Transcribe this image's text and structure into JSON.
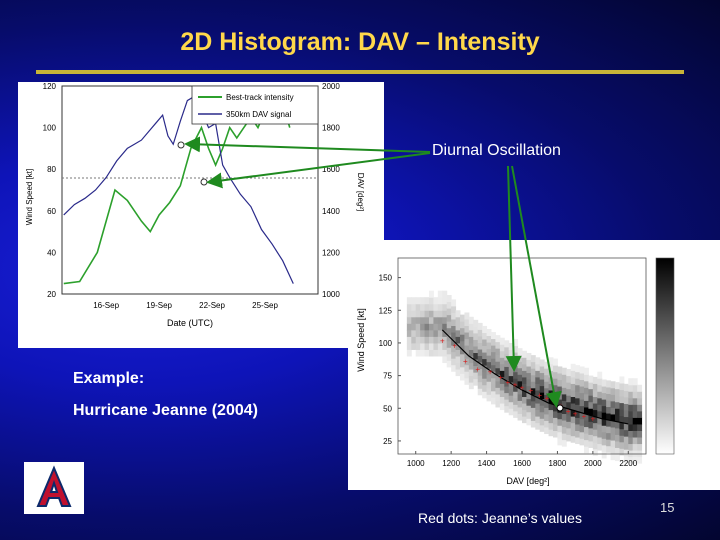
{
  "slide": {
    "title": "2D Histogram: DAV – Intensity",
    "annotation": "Diurnal Oscillation",
    "example_label": "Example:",
    "example_name": "Hurricane Jeanne (2004)",
    "caption": "Red dots: Jeanne’s values",
    "page_number": "15"
  },
  "colors": {
    "title": "#ffd84a",
    "arrow": "#1f8a1f",
    "intensity_line": "#2ca02c",
    "dav_line": "#2a2a8a",
    "red_dots": "#d81e1e"
  },
  "chart_data": [
    {
      "type": "line",
      "legend": [
        "Best-track intensity",
        "350km DAV signal"
      ],
      "xlabel": "Date (UTC)",
      "ylabel_left": "Wind Speed [kt]",
      "ylabel_right": "DAV [deg²]",
      "x_ticks": [
        "16-Sep",
        "19-Sep",
        "22-Sep",
        "25-Sep"
      ],
      "y_left_ticks": [
        "120",
        "100",
        "80",
        "60",
        "40",
        "20"
      ],
      "y_right_ticks": [
        "2000",
        "1800",
        "1600",
        "1400",
        "1200",
        "1000"
      ],
      "y_left_range": [
        20,
        120
      ],
      "y_right_range": [
        1000,
        2000
      ],
      "x_range_days": [
        13.5,
        28
      ],
      "series": [
        {
          "name": "Best-track intensity",
          "x": [
            13.6,
            14.5,
            15.5,
            16.5,
            17.2,
            18,
            18.5,
            19,
            19.6,
            20.2,
            20.8,
            21.4,
            21.8,
            22.2,
            22.6,
            23,
            23.4,
            23.8,
            24.2,
            24.6,
            25,
            25.6,
            26,
            26.4
          ],
          "y": [
            25,
            26,
            40,
            70,
            65,
            55,
            50,
            58,
            64,
            72,
            90,
            100,
            90,
            82,
            90,
            100,
            95,
            100,
            105,
            100,
            108,
            110,
            112,
            100
          ]
        },
        {
          "name": "350km DAV signal",
          "x": [
            13.6,
            14.2,
            14.8,
            15.4,
            16,
            16.6,
            17.2,
            17.6,
            18,
            18.4,
            18.8,
            19.2,
            19.5,
            19.8,
            20.2,
            20.6,
            21,
            21.4,
            21.8,
            22.2,
            22.6,
            23,
            23.6,
            24.2,
            24.8,
            25.4,
            26,
            26.6
          ],
          "y": [
            1380,
            1430,
            1460,
            1500,
            1560,
            1640,
            1700,
            1720,
            1740,
            1780,
            1820,
            1860,
            1760,
            1720,
            1830,
            1930,
            1950,
            1880,
            1800,
            1820,
            1620,
            1560,
            1480,
            1420,
            1310,
            1240,
            1160,
            1050
          ]
        }
      ]
    },
    {
      "type": "heatmap",
      "xlabel": "DAV [deg²]",
      "ylabel": "Wind Speed [kt]",
      "x_ticks": [
        "1000",
        "1200",
        "1400",
        "1600",
        "1800",
        "2000",
        "2200"
      ],
      "y_ticks": [
        "150",
        "125",
        "100",
        "75",
        "50",
        "25"
      ],
      "x_range": [
        900,
        2300
      ],
      "y_range": [
        15,
        165
      ],
      "series": [
        {
          "name": "Jeanne",
          "x": [
            1150,
            1220,
            1280,
            1350,
            1420,
            1480,
            1520,
            1560,
            1600,
            1650,
            1700,
            1740,
            1780,
            1820,
            1860,
            1900,
            1950,
            2000
          ],
          "y": [
            102,
            98,
            86,
            80,
            78,
            74,
            70,
            68,
            66,
            64,
            60,
            58,
            55,
            52,
            48,
            46,
            44,
            42
          ]
        }
      ],
      "fit_curve": {
        "x": [
          1150,
          1300,
          1450,
          1600,
          1750,
          1900,
          2050,
          2200
        ],
        "y": [
          110,
          90,
          76,
          64,
          54,
          48,
          42,
          38
        ]
      }
    }
  ]
}
